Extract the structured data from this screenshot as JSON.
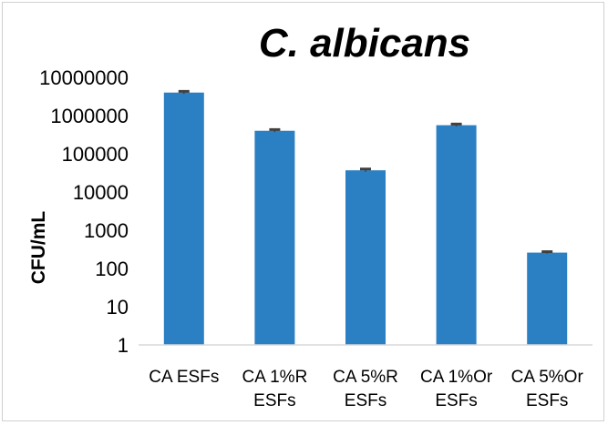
{
  "chart_data": {
    "type": "bar",
    "title": "C. albicans",
    "xlabel": "",
    "ylabel": "CFU/mL",
    "yscale": "log",
    "ylim": [
      1,
      10000000
    ],
    "yticks": [
      "1",
      "10",
      "100",
      "1000",
      "10000",
      "100000",
      "1000000",
      "10000000"
    ],
    "categories": [
      [
        "CA ESFs"
      ],
      [
        "CA 1%R",
        "ESFs"
      ],
      [
        "CA 5%R",
        "ESFs"
      ],
      [
        "CA 1%Or",
        "ESFs"
      ],
      [
        "CA 5%Or",
        "ESFs"
      ]
    ],
    "values": [
      4000000,
      400000,
      37000,
      560000,
      260
    ],
    "error": [
      300000,
      30000,
      3000,
      40000,
      15
    ],
    "bar_color": "#2b7fc3",
    "error_color": "#404040",
    "grid": false,
    "legend": "none"
  }
}
